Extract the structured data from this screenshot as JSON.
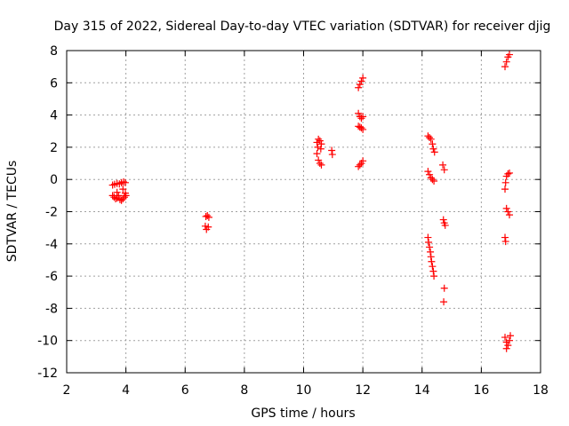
{
  "chart_data": {
    "type": "scatter",
    "title": "Day 315 of 2022, Sidereal Day-to-day VTEC variation (SDTVAR) for receiver djig",
    "xlabel": "GPS time / hours",
    "ylabel": "SDTVAR / TECUs",
    "xlim": [
      2,
      18
    ],
    "ylim": [
      -12,
      8
    ],
    "xticks": [
      2,
      4,
      6,
      8,
      10,
      12,
      14,
      16,
      18
    ],
    "yticks": [
      -12,
      -10,
      -8,
      -6,
      -4,
      -2,
      0,
      2,
      4,
      6,
      8
    ],
    "grid": true,
    "marker": "+",
    "point_color": "#ff0000",
    "series": [
      {
        "name": "SDTVAR",
        "points": [
          [
            3.55,
            -0.35
          ],
          [
            3.62,
            -0.3
          ],
          [
            3.7,
            -0.25
          ],
          [
            3.78,
            -0.28
          ],
          [
            3.85,
            -0.2
          ],
          [
            3.92,
            -0.15
          ],
          [
            3.98,
            -0.2
          ],
          [
            3.55,
            -1.0
          ],
          [
            3.6,
            -1.1
          ],
          [
            3.65,
            -1.2
          ],
          [
            3.7,
            -1.15
          ],
          [
            3.75,
            -1.0
          ],
          [
            3.8,
            -1.25
          ],
          [
            3.85,
            -1.3
          ],
          [
            3.9,
            -1.2
          ],
          [
            3.95,
            -1.1
          ],
          [
            4.0,
            -1.0
          ],
          [
            3.7,
            -0.8
          ],
          [
            3.9,
            -0.6
          ],
          [
            3.98,
            -0.85
          ],
          [
            6.7,
            -2.3
          ],
          [
            6.75,
            -2.25
          ],
          [
            6.8,
            -2.35
          ],
          [
            6.68,
            -2.9
          ],
          [
            6.72,
            -3.1
          ],
          [
            6.78,
            -2.95
          ],
          [
            10.45,
            2.3
          ],
          [
            10.5,
            2.5
          ],
          [
            10.55,
            2.4
          ],
          [
            10.6,
            2.2
          ],
          [
            10.48,
            2.0
          ],
          [
            10.58,
            1.9
          ],
          [
            10.45,
            1.6
          ],
          [
            10.5,
            1.2
          ],
          [
            10.55,
            1.0
          ],
          [
            10.6,
            0.9
          ],
          [
            10.95,
            1.8
          ],
          [
            10.97,
            1.55
          ],
          [
            11.85,
            5.7
          ],
          [
            11.9,
            5.9
          ],
          [
            11.95,
            6.1
          ],
          [
            12.0,
            6.3
          ],
          [
            11.85,
            4.1
          ],
          [
            11.9,
            3.9
          ],
          [
            11.95,
            3.8
          ],
          [
            12.0,
            3.9
          ],
          [
            11.85,
            3.3
          ],
          [
            11.9,
            3.25
          ],
          [
            11.95,
            3.2
          ],
          [
            12.0,
            3.1
          ],
          [
            11.85,
            0.8
          ],
          [
            11.9,
            0.9
          ],
          [
            11.95,
            1.0
          ],
          [
            12.0,
            1.15
          ],
          [
            14.2,
            2.7
          ],
          [
            14.25,
            2.6
          ],
          [
            14.3,
            2.5
          ],
          [
            14.35,
            2.2
          ],
          [
            14.38,
            1.9
          ],
          [
            14.42,
            1.7
          ],
          [
            14.2,
            0.5
          ],
          [
            14.25,
            0.3
          ],
          [
            14.3,
            0.1
          ],
          [
            14.35,
            0.0
          ],
          [
            14.4,
            -0.1
          ],
          [
            14.2,
            -3.6
          ],
          [
            14.22,
            -3.9
          ],
          [
            14.25,
            -4.2
          ],
          [
            14.28,
            -4.5
          ],
          [
            14.3,
            -4.8
          ],
          [
            14.32,
            -5.1
          ],
          [
            14.35,
            -5.4
          ],
          [
            14.38,
            -5.7
          ],
          [
            14.4,
            -6.0
          ],
          [
            14.7,
            0.9
          ],
          [
            14.75,
            0.6
          ],
          [
            14.72,
            -2.5
          ],
          [
            14.75,
            -2.7
          ],
          [
            14.78,
            -2.85
          ],
          [
            14.75,
            -6.75
          ],
          [
            14.73,
            -7.6
          ],
          [
            16.8,
            7.0
          ],
          [
            16.85,
            7.3
          ],
          [
            16.9,
            7.6
          ],
          [
            16.95,
            7.75
          ],
          [
            16.8,
            -0.6
          ],
          [
            16.82,
            -0.2
          ],
          [
            16.85,
            0.2
          ],
          [
            16.9,
            0.35
          ],
          [
            16.95,
            0.4
          ],
          [
            16.85,
            -1.8
          ],
          [
            16.9,
            -2.0
          ],
          [
            16.95,
            -2.2
          ],
          [
            16.8,
            -3.6
          ],
          [
            16.82,
            -3.85
          ],
          [
            16.8,
            -9.8
          ],
          [
            16.85,
            -10.1
          ],
          [
            16.9,
            -10.3
          ],
          [
            16.95,
            -10.0
          ],
          [
            16.98,
            -9.7
          ],
          [
            16.85,
            -10.5
          ]
        ]
      }
    ]
  }
}
